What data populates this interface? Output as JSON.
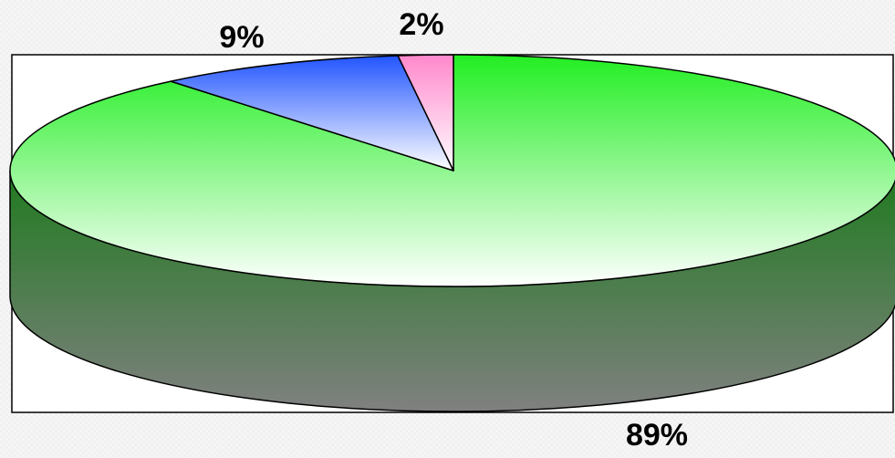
{
  "chart_data": {
    "type": "pie",
    "title": "",
    "slices": [
      {
        "value": 89,
        "label": "89%",
        "color": "#22ee22"
      },
      {
        "value": 9,
        "label": "9%",
        "color": "#2255ff"
      },
      {
        "value": 2,
        "label": "2%",
        "color": "#ff88cc"
      }
    ],
    "three_d": true,
    "legend": "none"
  }
}
